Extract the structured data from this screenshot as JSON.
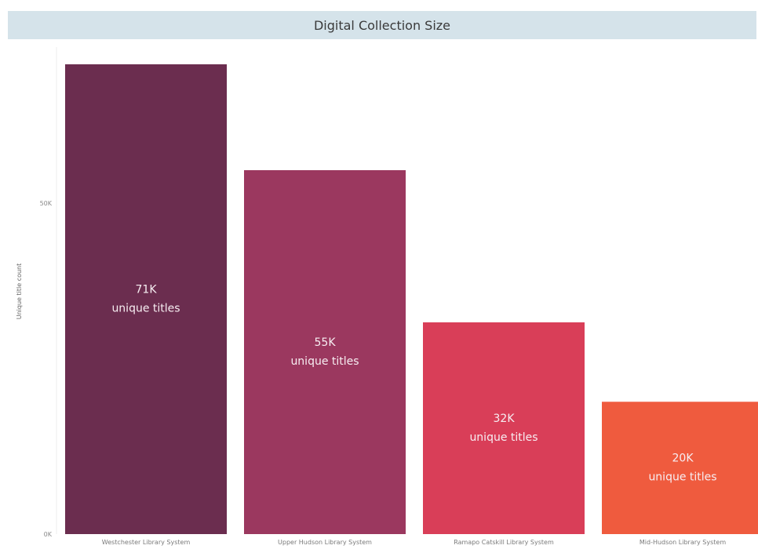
{
  "chart_data": {
    "type": "bar",
    "title": "Digital Collection Size",
    "ylabel": "Unique title count",
    "xlabel": "",
    "ylim": [
      0,
      71000
    ],
    "yticks": [
      {
        "value": 0,
        "label": "0K"
      },
      {
        "value": 50000,
        "label": "50K"
      }
    ],
    "grid": false,
    "categories": [
      "Westchester Library System",
      "Upper Hudson Library System",
      "Ramapo Catskill Library System",
      "Mid-Hudson Library System"
    ],
    "values": [
      71000,
      55000,
      32000,
      20000
    ],
    "data_labels": [
      {
        "value": "71K",
        "unit": "unique titles"
      },
      {
        "value": "55K",
        "unit": "unique titles"
      },
      {
        "value": "32K",
        "unit": "unique titles"
      },
      {
        "value": "20K",
        "unit": "unique titles"
      }
    ],
    "colors": [
      "#6b2d4f",
      "#9b385f",
      "#d93e58",
      "#ef5b3e"
    ]
  }
}
